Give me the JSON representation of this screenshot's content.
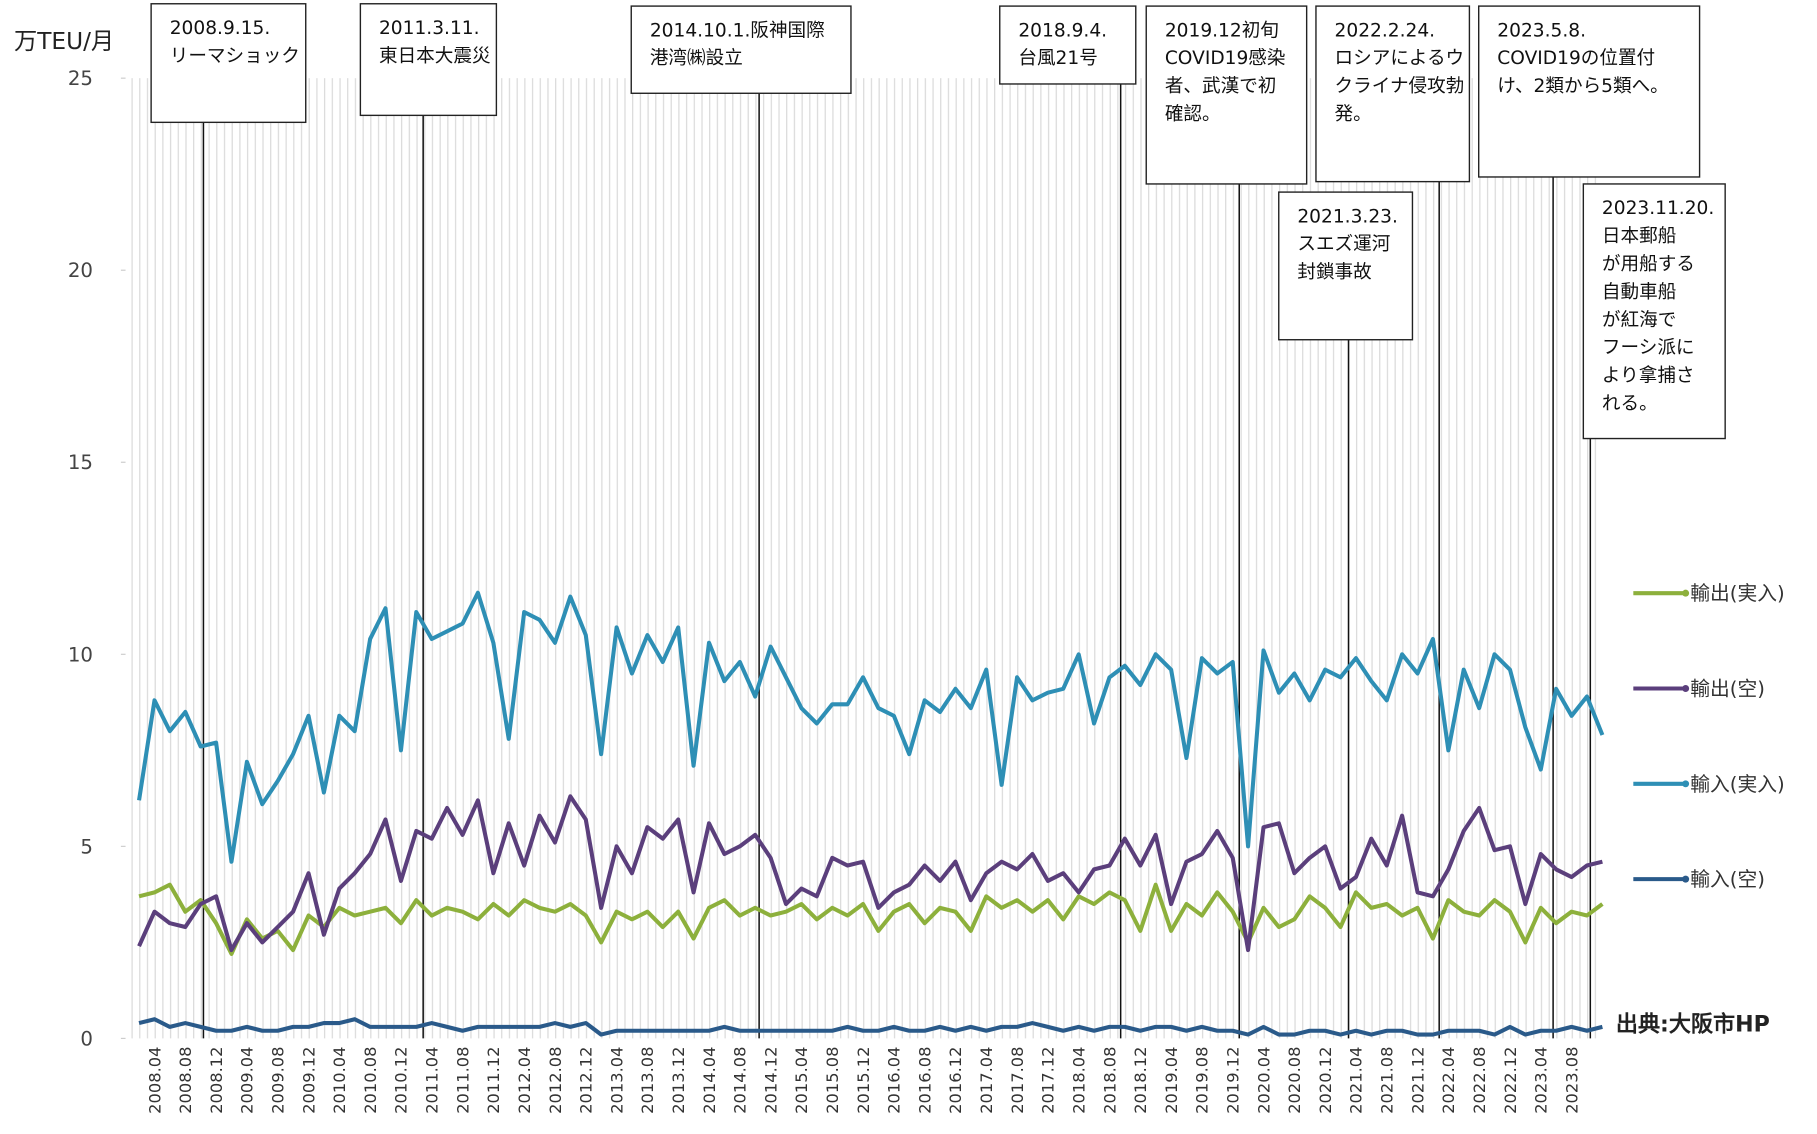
{
  "chart_data": {
    "type": "line",
    "y_label": "万TEU/月",
    "source": "出典:大阪市HP",
    "categories": [
      null,
      "2008.04",
      null,
      "2008.08",
      null,
      "2008.12",
      null,
      "2009.04",
      null,
      "2009.08",
      null,
      "2009.12",
      null,
      "2010.04",
      null,
      "2010.08",
      null,
      "2010.12",
      null,
      "2011.04",
      null,
      "2011.08",
      null,
      "2011.12",
      null,
      "2012.04",
      null,
      "2012.08",
      null,
      "2012.12",
      null,
      "2013.04",
      null,
      "2013.08",
      null,
      "2013.12",
      null,
      "2014.04",
      null,
      "2014.08",
      null,
      "2014.12",
      null,
      "2015.04",
      null,
      "2015.08",
      null,
      "2015.12",
      null,
      "2016.04",
      null,
      "2016.08",
      null,
      "2016.12",
      null,
      "2017.04",
      null,
      "2017.08",
      null,
      "2017.12",
      null,
      "2018.04",
      null,
      "2018.08",
      null,
      "2018.12",
      null,
      "2019.04",
      null,
      "2019.08",
      null,
      "2019.12",
      null,
      "2020.04",
      null,
      "2020.08",
      null,
      "2020.12",
      null,
      "2021.04",
      null,
      "2021.08",
      null,
      "2021.12",
      null,
      "2022.04",
      null,
      "2022.08",
      null,
      "2022.12",
      null,
      "2023.04",
      null,
      "2023.08",
      null,
      null
    ],
    "series": [
      {
        "name": "輸出(実入)",
        "color": "#8db03c",
        "values": [
          3.7,
          3.8,
          4.0,
          3.3,
          3.6,
          3.0,
          2.2,
          3.1,
          2.6,
          2.8,
          2.3,
          3.2,
          2.9,
          3.4,
          3.2,
          3.3,
          3.4,
          3.0,
          3.6,
          3.2,
          3.4,
          3.3,
          3.1,
          3.5,
          3.2,
          3.6,
          3.4,
          3.3,
          3.5,
          3.2,
          2.5,
          3.3,
          3.1,
          3.3,
          2.9,
          3.3,
          2.6,
          3.4,
          3.6,
          3.2,
          3.4,
          3.2,
          3.3,
          3.5,
          3.1,
          3.4,
          3.2,
          3.5,
          2.8,
          3.3,
          3.5,
          3.0,
          3.4,
          3.3,
          2.8,
          3.7,
          3.4,
          3.6,
          3.3,
          3.6,
          3.1,
          3.7,
          3.5,
          3.8,
          3.6,
          2.8,
          4.0,
          2.8,
          3.5,
          3.2,
          3.8,
          3.3,
          2.5,
          3.4,
          2.9,
          3.1,
          3.7,
          3.4,
          2.9,
          3.8,
          3.4,
          3.5,
          3.2,
          3.4,
          2.6,
          3.6,
          3.3,
          3.2,
          3.6,
          3.3,
          2.5,
          3.4,
          3.0,
          3.3,
          3.2,
          3.5
        ]
      },
      {
        "name": "輸出(空)",
        "color": "#5b3f7c",
        "values": [
          2.4,
          3.3,
          3.0,
          2.9,
          3.5,
          3.7,
          2.3,
          3.0,
          2.5,
          2.9,
          3.3,
          4.3,
          2.7,
          3.9,
          4.3,
          4.8,
          5.7,
          4.1,
          5.4,
          5.2,
          6.0,
          5.3,
          6.2,
          4.3,
          5.6,
          4.5,
          5.8,
          5.1,
          6.3,
          5.7,
          3.4,
          5.0,
          4.3,
          5.5,
          5.2,
          5.7,
          3.8,
          5.6,
          4.8,
          5.0,
          5.3,
          4.7,
          3.5,
          3.9,
          3.7,
          4.7,
          4.5,
          4.6,
          3.4,
          3.8,
          4.0,
          4.5,
          4.1,
          4.6,
          3.6,
          4.3,
          4.6,
          4.4,
          4.8,
          4.1,
          4.3,
          3.8,
          4.4,
          4.5,
          5.2,
          4.5,
          5.3,
          3.5,
          4.6,
          4.8,
          5.4,
          4.7,
          2.3,
          5.5,
          5.6,
          4.3,
          4.7,
          5.0,
          3.9,
          4.2,
          5.2,
          4.5,
          5.8,
          3.8,
          3.7,
          4.4,
          5.4,
          6.0,
          4.9,
          5.0,
          3.5,
          4.8,
          4.4,
          4.2,
          4.5,
          4.6
        ]
      },
      {
        "name": "輸入(実入)",
        "color": "#2e8fb5",
        "values": [
          6.2,
          8.8,
          8.0,
          8.5,
          7.6,
          7.7,
          4.6,
          7.2,
          6.1,
          6.7,
          7.4,
          8.4,
          6.4,
          8.4,
          8.0,
          10.4,
          11.2,
          7.5,
          11.1,
          10.4,
          10.6,
          10.8,
          11.6,
          10.3,
          7.8,
          11.1,
          10.9,
          10.3,
          11.5,
          10.5,
          7.4,
          10.7,
          9.5,
          10.5,
          9.8,
          10.7,
          7.1,
          10.3,
          9.3,
          9.8,
          8.9,
          10.2,
          9.4,
          8.6,
          8.2,
          8.7,
          8.7,
          9.4,
          8.6,
          8.4,
          7.4,
          8.8,
          8.5,
          9.1,
          8.6,
          9.6,
          6.6,
          9.4,
          8.8,
          9.0,
          9.1,
          10.0,
          8.2,
          9.4,
          9.7,
          9.2,
          10.0,
          9.6,
          7.3,
          9.9,
          9.5,
          9.8,
          5.0,
          10.1,
          9.0,
          9.5,
          8.8,
          9.6,
          9.4,
          9.9,
          9.3,
          8.8,
          10.0,
          9.5,
          10.4,
          7.5,
          9.6,
          8.6,
          10.0,
          9.6,
          8.1,
          7.0,
          9.1,
          8.4,
          8.9,
          7.9
        ]
      },
      {
        "name": "輸入(空)",
        "color": "#2a5a8a",
        "values": [
          0.4,
          0.5,
          0.3,
          0.4,
          0.3,
          0.2,
          0.2,
          0.3,
          0.2,
          0.2,
          0.3,
          0.3,
          0.4,
          0.4,
          0.5,
          0.3,
          0.3,
          0.3,
          0.3,
          0.4,
          0.3,
          0.2,
          0.3,
          0.3,
          0.3,
          0.3,
          0.3,
          0.4,
          0.3,
          0.4,
          0.1,
          0.2,
          0.2,
          0.2,
          0.2,
          0.2,
          0.2,
          0.2,
          0.3,
          0.2,
          0.2,
          0.2,
          0.2,
          0.2,
          0.2,
          0.2,
          0.3,
          0.2,
          0.2,
          0.3,
          0.2,
          0.2,
          0.3,
          0.2,
          0.3,
          0.2,
          0.3,
          0.3,
          0.4,
          0.3,
          0.2,
          0.3,
          0.2,
          0.3,
          0.3,
          0.2,
          0.3,
          0.3,
          0.2,
          0.3,
          0.2,
          0.2,
          0.1,
          0.3,
          0.1,
          0.1,
          0.2,
          0.2,
          0.1,
          0.2,
          0.1,
          0.2,
          0.2,
          0.1,
          0.1,
          0.2,
          0.2,
          0.2,
          0.1,
          0.3,
          0.1,
          0.2,
          0.2,
          0.3,
          0.2,
          0.3
        ]
      }
    ],
    "ylim": [
      0,
      25
    ],
    "yticks": [
      0,
      5,
      10,
      15,
      20,
      25
    ],
    "annotations": [
      {
        "lines": [
          "2008.9.15.",
          "リーマショック"
        ]
      },
      {
        "lines": [
          "2011.3.11.",
          "東日本大震災"
        ]
      },
      {
        "lines": [
          "2014.10.1.阪神国際",
          "港湾㈱設立"
        ]
      },
      {
        "lines": [
          "2018.9.4.",
          "台風21号"
        ]
      },
      {
        "lines": [
          "2019.12初旬",
          "COVID19感染",
          "者、武漢で初",
          "確認。"
        ]
      },
      {
        "lines": [
          "2022.2.24.",
          "ロシアによるウ",
          "クライナ侵攻勃",
          "発。"
        ]
      },
      {
        "lines": [
          "2021.3.23.",
          "スエズ運河",
          "封鎖事故"
        ]
      },
      {
        "lines": [
          "2023.5.8.",
          "COVID19の位置付",
          "け、2類から5類へ。"
        ]
      },
      {
        "lines": [
          "2023.11.20.",
          "日本郵船",
          "が用船する",
          "自動車船",
          "が紅海で",
          "フーシ派に",
          "より拿捕さ",
          "れる。"
        ]
      }
    ]
  }
}
